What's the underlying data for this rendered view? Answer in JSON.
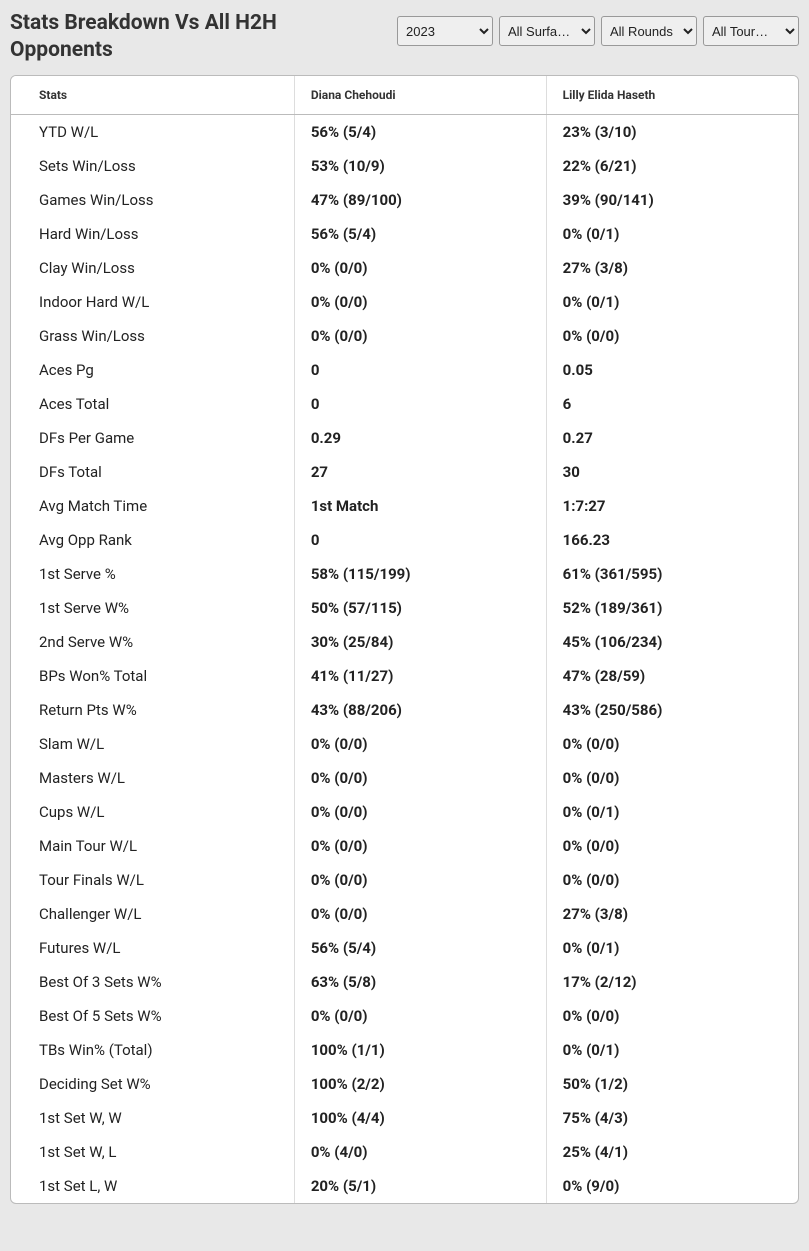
{
  "title": "Stats Breakdown Vs All H2H Opponents",
  "filters": {
    "year": {
      "selected": "2023",
      "options": [
        "2023"
      ]
    },
    "surface": {
      "selected": "All Surfa…",
      "options": [
        "All Surfa…"
      ]
    },
    "round": {
      "selected": "All Rounds",
      "options": [
        "All Rounds"
      ]
    },
    "tour": {
      "selected": "All Tour…",
      "options": [
        "All Tour…"
      ]
    }
  },
  "columns": {
    "stats": "Stats",
    "player1": "Diana Chehoudi",
    "player2": "Lilly Elida Haseth"
  },
  "rows": [
    {
      "label": "YTD W/L",
      "p1": "56% (5/4)",
      "p2": "23% (3/10)"
    },
    {
      "label": "Sets Win/Loss",
      "p1": "53% (10/9)",
      "p2": "22% (6/21)"
    },
    {
      "label": "Games Win/Loss",
      "p1": "47% (89/100)",
      "p2": "39% (90/141)"
    },
    {
      "label": "Hard Win/Loss",
      "p1": "56% (5/4)",
      "p2": "0% (0/1)"
    },
    {
      "label": "Clay Win/Loss",
      "p1": "0% (0/0)",
      "p2": "27% (3/8)"
    },
    {
      "label": "Indoor Hard W/L",
      "p1": "0% (0/0)",
      "p2": "0% (0/1)"
    },
    {
      "label": "Grass Win/Loss",
      "p1": "0% (0/0)",
      "p2": "0% (0/0)"
    },
    {
      "label": "Aces Pg",
      "p1": "0",
      "p2": "0.05"
    },
    {
      "label": "Aces Total",
      "p1": "0",
      "p2": "6"
    },
    {
      "label": "DFs Per Game",
      "p1": "0.29",
      "p2": "0.27"
    },
    {
      "label": "DFs Total",
      "p1": "27",
      "p2": "30"
    },
    {
      "label": "Avg Match Time",
      "p1": "1st Match",
      "p2": "1:7:27"
    },
    {
      "label": "Avg Opp Rank",
      "p1": "0",
      "p2": "166.23"
    },
    {
      "label": "1st Serve %",
      "p1": "58% (115/199)",
      "p2": "61% (361/595)"
    },
    {
      "label": "1st Serve W%",
      "p1": "50% (57/115)",
      "p2": "52% (189/361)"
    },
    {
      "label": "2nd Serve W%",
      "p1": "30% (25/84)",
      "p2": "45% (106/234)"
    },
    {
      "label": "BPs Won% Total",
      "p1": "41% (11/27)",
      "p2": "47% (28/59)"
    },
    {
      "label": "Return Pts W%",
      "p1": "43% (88/206)",
      "p2": "43% (250/586)"
    },
    {
      "label": "Slam W/L",
      "p1": "0% (0/0)",
      "p2": "0% (0/0)"
    },
    {
      "label": "Masters W/L",
      "p1": "0% (0/0)",
      "p2": "0% (0/0)"
    },
    {
      "label": "Cups W/L",
      "p1": "0% (0/0)",
      "p2": "0% (0/1)"
    },
    {
      "label": "Main Tour W/L",
      "p1": "0% (0/0)",
      "p2": "0% (0/0)"
    },
    {
      "label": "Tour Finals W/L",
      "p1": "0% (0/0)",
      "p2": "0% (0/0)"
    },
    {
      "label": "Challenger W/L",
      "p1": "0% (0/0)",
      "p2": "27% (3/8)"
    },
    {
      "label": "Futures W/L",
      "p1": "56% (5/4)",
      "p2": "0% (0/1)"
    },
    {
      "label": "Best Of 3 Sets W%",
      "p1": "63% (5/8)",
      "p2": "17% (2/12)"
    },
    {
      "label": "Best Of 5 Sets W%",
      "p1": "0% (0/0)",
      "p2": "0% (0/0)"
    },
    {
      "label": "TBs Win% (Total)",
      "p1": "100% (1/1)",
      "p2": "0% (0/1)"
    },
    {
      "label": "Deciding Set W%",
      "p1": "100% (2/2)",
      "p2": "50% (1/2)"
    },
    {
      "label": "1st Set W, W",
      "p1": "100% (4/4)",
      "p2": "75% (4/3)"
    },
    {
      "label": "1st Set W, L",
      "p1": "0% (4/0)",
      "p2": "25% (4/1)"
    },
    {
      "label": "1st Set L, W",
      "p1": "20% (5/1)",
      "p2": "0% (9/0)"
    }
  ],
  "styling": {
    "body_bg": "#e8e8e8",
    "table_bg": "#ffffff",
    "border_color": "#bbbbbb",
    "cell_border": "#dddddd",
    "header_font_size": 12,
    "body_font_size": 15,
    "title_font_size": 21,
    "title_color": "#333333",
    "text_color": "#222222"
  }
}
